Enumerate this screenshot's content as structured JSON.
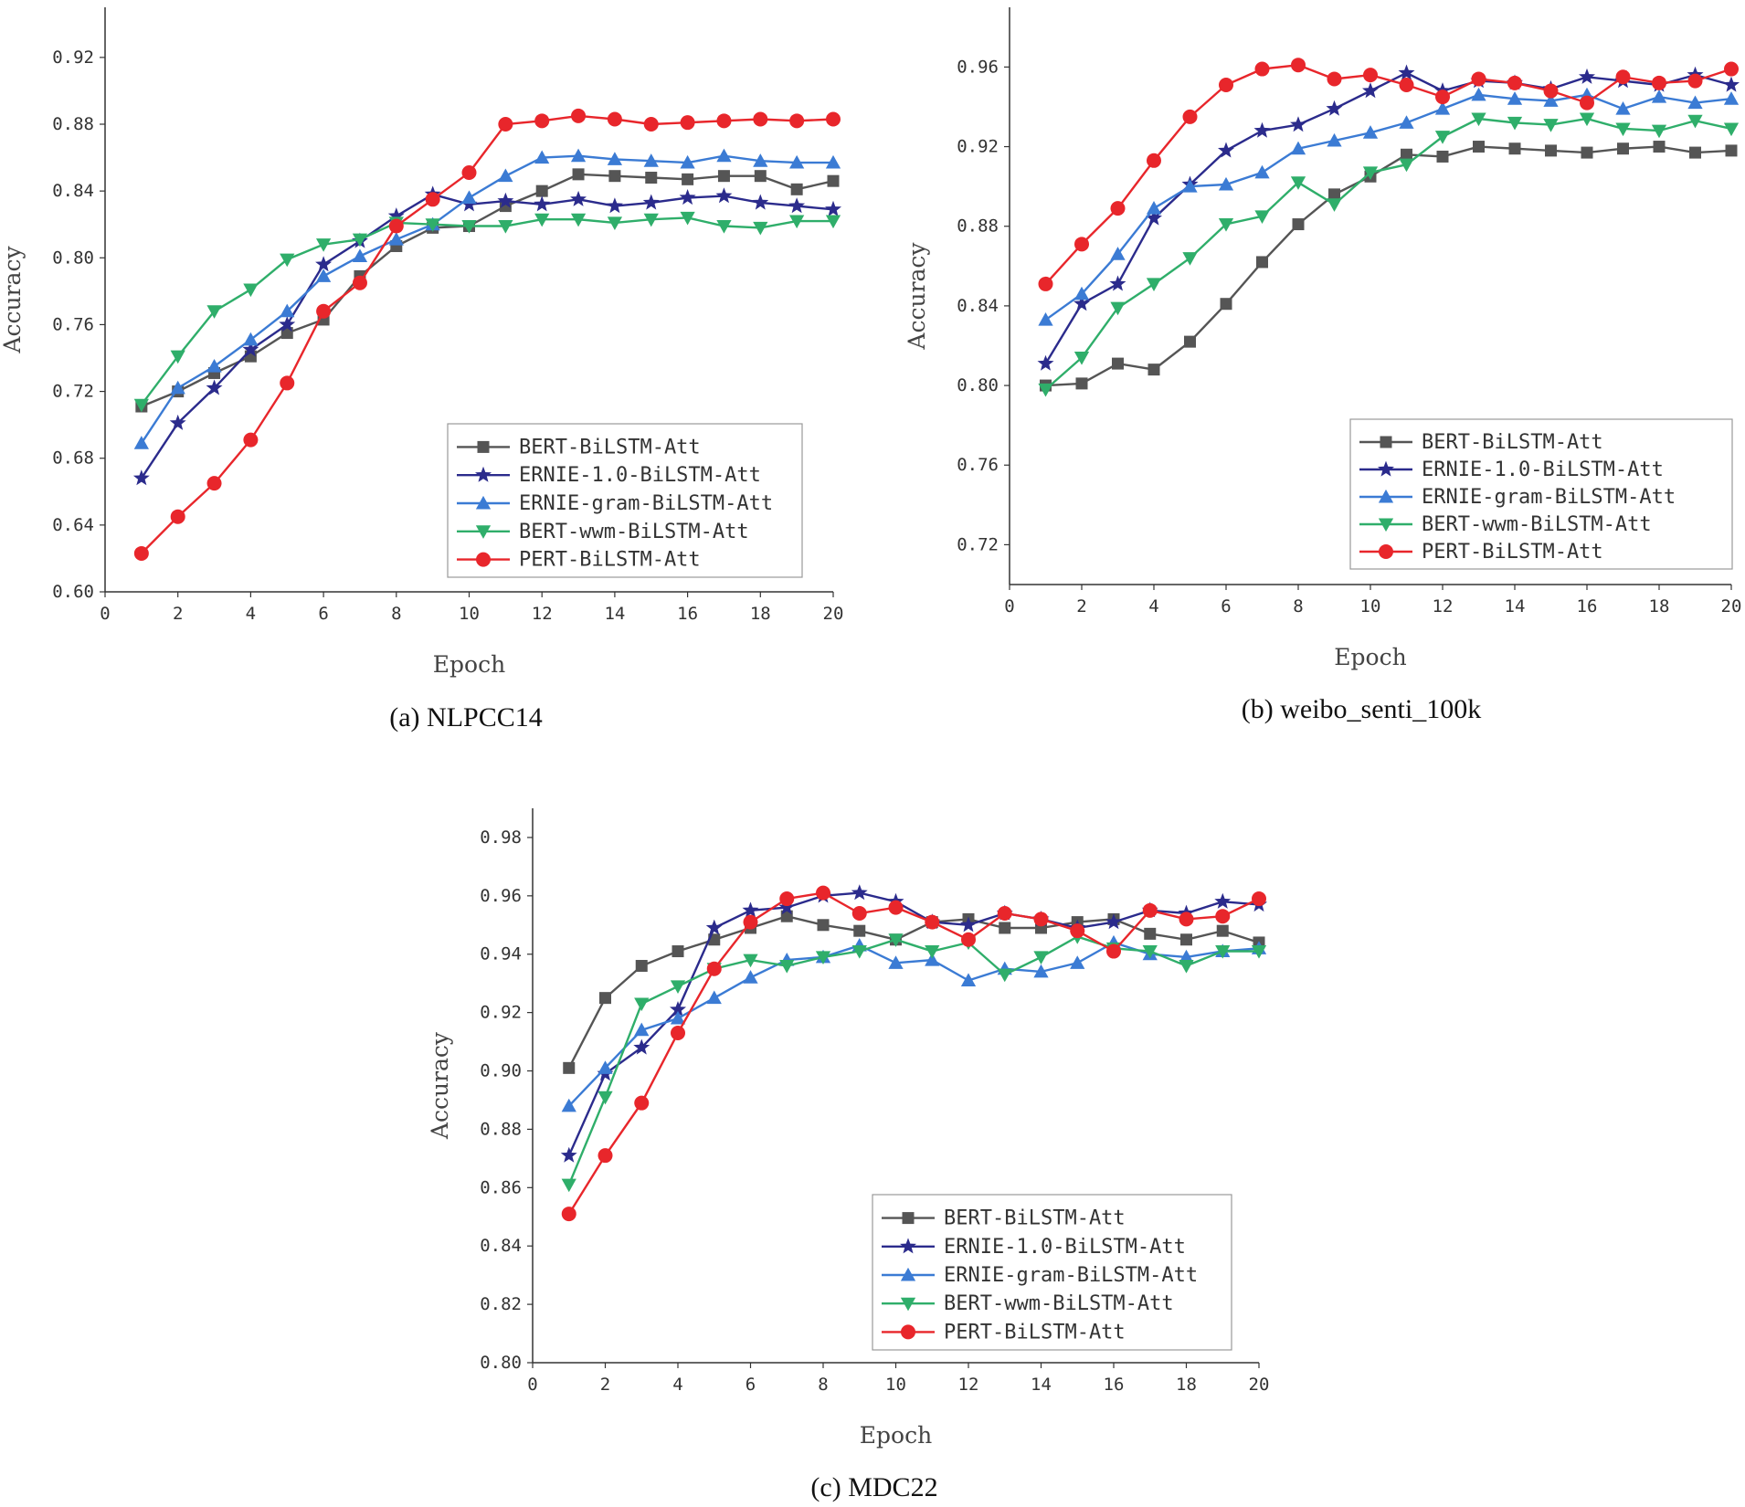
{
  "chart_data": [
    {
      "type": "line",
      "caption": "(a) NLPCC14",
      "xlabel": "Epoch",
      "ylabel": "Accuracy",
      "xlim": [
        0,
        20
      ],
      "ylim": [
        0.6,
        0.95
      ],
      "xticks": [
        0,
        2,
        4,
        6,
        8,
        10,
        12,
        14,
        16,
        18,
        20
      ],
      "xtick_labels": [
        "0",
        "2",
        "4",
        "6",
        "8",
        "10",
        "12",
        "14",
        "16",
        "18",
        "20"
      ],
      "yticks": [
        0.6,
        0.64,
        0.68,
        0.72,
        0.76,
        0.8,
        0.84,
        0.88,
        0.92
      ],
      "ytick_labels": [
        "0.60",
        "0.64",
        "0.68",
        "0.72",
        "0.76",
        "0.80",
        "0.84",
        "0.88",
        "0.92"
      ],
      "legend_position": "bottom-right",
      "x": [
        1,
        2,
        3,
        4,
        5,
        6,
        7,
        8,
        9,
        10,
        11,
        12,
        13,
        14,
        15,
        16,
        17,
        18,
        19,
        20
      ],
      "series": [
        {
          "name": "BERT-BiLSTM-Att",
          "color": "#555555",
          "marker": "square",
          "values": [
            0.711,
            0.72,
            0.731,
            0.741,
            0.755,
            0.763,
            0.789,
            0.807,
            0.818,
            0.819,
            0.831,
            0.84,
            0.85,
            0.849,
            0.848,
            0.847,
            0.849,
            0.849,
            0.841,
            0.846
          ]
        },
        {
          "name": "ERNIE-1.0-BiLSTM-Att",
          "color": "#2b2b8c",
          "marker": "star",
          "values": [
            0.668,
            0.701,
            0.722,
            0.745,
            0.76,
            0.796,
            0.81,
            0.825,
            0.838,
            0.832,
            0.834,
            0.832,
            0.835,
            0.831,
            0.833,
            0.836,
            0.837,
            0.833,
            0.831,
            0.829
          ]
        },
        {
          "name": "ERNIE-gram-BiLSTM-Att",
          "color": "#3b7bd4",
          "marker": "triangle-up",
          "values": [
            0.689,
            0.722,
            0.735,
            0.751,
            0.768,
            0.789,
            0.801,
            0.811,
            0.82,
            0.836,
            0.849,
            0.86,
            0.861,
            0.859,
            0.858,
            0.857,
            0.861,
            0.858,
            0.857,
            0.857
          ]
        },
        {
          "name": "BERT-wwm-BiLSTM-Att",
          "color": "#2fae6a",
          "marker": "triangle-down",
          "values": [
            0.712,
            0.741,
            0.768,
            0.781,
            0.799,
            0.808,
            0.811,
            0.821,
            0.82,
            0.819,
            0.819,
            0.823,
            0.823,
            0.821,
            0.823,
            0.824,
            0.819,
            0.818,
            0.822,
            0.822
          ]
        },
        {
          "name": "PERT-BiLSTM-Att",
          "color": "#e8262b",
          "marker": "circle",
          "values": [
            0.623,
            0.645,
            0.665,
            0.691,
            0.725,
            0.768,
            0.785,
            0.819,
            0.835,
            0.851,
            0.88,
            0.882,
            0.885,
            0.883,
            0.88,
            0.881,
            0.882,
            0.883,
            0.882,
            0.883
          ]
        }
      ]
    },
    {
      "type": "line",
      "caption": "(b) weibo_senti_100k",
      "xlabel": "Epoch",
      "ylabel": "Accuracy",
      "xlim": [
        0,
        20
      ],
      "ylim": [
        0.7,
        0.99
      ],
      "xticks": [
        0,
        2,
        4,
        6,
        8,
        10,
        12,
        14,
        16,
        18,
        20
      ],
      "xtick_labels": [
        "0",
        "2",
        "4",
        "6",
        "8",
        "10",
        "12",
        "14",
        "16",
        "18",
        "20"
      ],
      "yticks": [
        0.72,
        0.76,
        0.8,
        0.84,
        0.88,
        0.92,
        0.96
      ],
      "ytick_labels": [
        "0.72",
        "0.76",
        "0.80",
        "0.84",
        "0.88",
        "0.92",
        "0.96"
      ],
      "legend_position": "bottom-right",
      "x": [
        1,
        2,
        3,
        4,
        5,
        6,
        7,
        8,
        9,
        10,
        11,
        12,
        13,
        14,
        15,
        16,
        17,
        18,
        19,
        20
      ],
      "series": [
        {
          "name": "BERT-BiLSTM-Att",
          "color": "#555555",
          "marker": "square",
          "values": [
            0.8,
            0.801,
            0.811,
            0.808,
            0.822,
            0.841,
            0.862,
            0.881,
            0.896,
            0.905,
            0.916,
            0.915,
            0.92,
            0.919,
            0.918,
            0.917,
            0.919,
            0.92,
            0.917,
            0.918
          ]
        },
        {
          "name": "ERNIE-1.0-BiLSTM-Att",
          "color": "#2b2b8c",
          "marker": "star",
          "values": [
            0.811,
            0.841,
            0.851,
            0.884,
            0.901,
            0.918,
            0.928,
            0.931,
            0.939,
            0.948,
            0.957,
            0.948,
            0.953,
            0.952,
            0.949,
            0.955,
            0.953,
            0.951,
            0.956,
            0.951
          ]
        },
        {
          "name": "ERNIE-gram-BiLSTM-Att",
          "color": "#3b7bd4",
          "marker": "triangle-up",
          "values": [
            0.833,
            0.846,
            0.866,
            0.889,
            0.9,
            0.901,
            0.907,
            0.919,
            0.923,
            0.927,
            0.932,
            0.939,
            0.946,
            0.944,
            0.943,
            0.946,
            0.939,
            0.945,
            0.942,
            0.944
          ]
        },
        {
          "name": "BERT-wwm-BiLSTM-Att",
          "color": "#2fae6a",
          "marker": "triangle-down",
          "values": [
            0.798,
            0.814,
            0.839,
            0.851,
            0.864,
            0.881,
            0.885,
            0.902,
            0.891,
            0.907,
            0.911,
            0.925,
            0.934,
            0.932,
            0.931,
            0.934,
            0.929,
            0.928,
            0.933,
            0.929
          ]
        },
        {
          "name": "PERT-BiLSTM-Att",
          "color": "#e8262b",
          "marker": "circle",
          "values": [
            0.851,
            0.871,
            0.889,
            0.913,
            0.935,
            0.951,
            0.959,
            0.961,
            0.954,
            0.956,
            0.951,
            0.945,
            0.954,
            0.952,
            0.948,
            0.942,
            0.955,
            0.952,
            0.953,
            0.959
          ]
        }
      ]
    },
    {
      "type": "line",
      "caption": "(c) MDC22",
      "xlabel": "Epoch",
      "ylabel": "Accuracy",
      "xlim": [
        0,
        20
      ],
      "ylim": [
        0.8,
        0.99
      ],
      "xticks": [
        0,
        2,
        4,
        6,
        8,
        10,
        12,
        14,
        16,
        18,
        20
      ],
      "xtick_labels": [
        "0",
        "2",
        "4",
        "6",
        "8",
        "10",
        "12",
        "14",
        "16",
        "18",
        "20"
      ],
      "yticks": [
        0.8,
        0.82,
        0.84,
        0.86,
        0.88,
        0.9,
        0.92,
        0.94,
        0.96,
        0.98
      ],
      "ytick_labels": [
        "0.80",
        "0.82",
        "0.84",
        "0.86",
        "0.88",
        "0.90",
        "0.92",
        "0.94",
        "0.96",
        "0.98"
      ],
      "legend_position": "bottom-right",
      "x": [
        1,
        2,
        3,
        4,
        5,
        6,
        7,
        8,
        9,
        10,
        11,
        12,
        13,
        14,
        15,
        16,
        17,
        18,
        19,
        20
      ],
      "series": [
        {
          "name": "BERT-BiLSTM-Att",
          "color": "#555555",
          "marker": "square",
          "values": [
            0.901,
            0.925,
            0.936,
            0.941,
            0.945,
            0.949,
            0.953,
            0.95,
            0.948,
            0.945,
            0.951,
            0.952,
            0.949,
            0.949,
            0.951,
            0.952,
            0.947,
            0.945,
            0.948,
            0.944
          ]
        },
        {
          "name": "ERNIE-1.0-BiLSTM-Att",
          "color": "#2b2b8c",
          "marker": "star",
          "values": [
            0.871,
            0.899,
            0.908,
            0.921,
            0.949,
            0.955,
            0.956,
            0.96,
            0.961,
            0.958,
            0.951,
            0.95,
            0.954,
            0.952,
            0.949,
            0.951,
            0.955,
            0.954,
            0.958,
            0.957
          ]
        },
        {
          "name": "ERNIE-gram-BiLSTM-Att",
          "color": "#3b7bd4",
          "marker": "triangle-up",
          "values": [
            0.888,
            0.901,
            0.914,
            0.918,
            0.925,
            0.932,
            0.938,
            0.939,
            0.943,
            0.937,
            0.938,
            0.931,
            0.935,
            0.934,
            0.937,
            0.944,
            0.94,
            0.939,
            0.941,
            0.942
          ]
        },
        {
          "name": "BERT-wwm-BiLSTM-Att",
          "color": "#2fae6a",
          "marker": "triangle-down",
          "values": [
            0.861,
            0.891,
            0.923,
            0.929,
            0.935,
            0.938,
            0.936,
            0.939,
            0.941,
            0.945,
            0.941,
            0.944,
            0.933,
            0.939,
            0.946,
            0.942,
            0.941,
            0.936,
            0.941,
            0.941
          ]
        },
        {
          "name": "PERT-BiLSTM-Att",
          "color": "#e8262b",
          "marker": "circle",
          "values": [
            0.851,
            0.871,
            0.889,
            0.913,
            0.935,
            0.951,
            0.959,
            0.961,
            0.954,
            0.956,
            0.951,
            0.945,
            0.954,
            0.952,
            0.948,
            0.941,
            0.955,
            0.952,
            0.953,
            0.959
          ]
        }
      ]
    }
  ]
}
